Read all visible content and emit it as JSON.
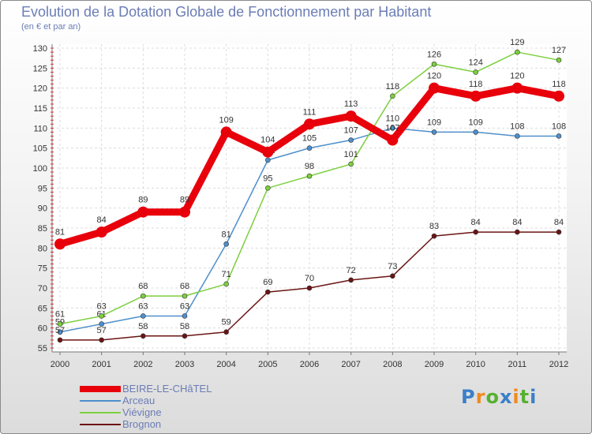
{
  "header": {
    "title": "Evolution de la Dotation Globale de Fonctionnement par Habitant",
    "subtitle": "(en € et par an)"
  },
  "brand": {
    "letters": [
      "P",
      "r",
      "o",
      "x",
      "i",
      "t",
      "i"
    ],
    "colors": [
      "#3a7fc8",
      "#f08a1c",
      "#58b030",
      "#3a7fc8",
      "#f08a1c",
      "#58b030",
      "#3a7fc8"
    ]
  },
  "chart_data": {
    "type": "line",
    "title": "Evolution de la Dotation Globale de Fonctionnement par Habitant",
    "subtitle": "(en € et par an)",
    "x": [
      "2000",
      "2001",
      "2002",
      "2003",
      "2004",
      "2005",
      "2006",
      "2007",
      "2008",
      "2009",
      "2010",
      "2011",
      "2012"
    ],
    "ylim": [
      55,
      130
    ],
    "yticks": [
      55,
      60,
      65,
      70,
      75,
      80,
      85,
      90,
      95,
      100,
      105,
      110,
      115,
      120,
      125,
      130
    ],
    "grid": true,
    "legend_position": "bottom-left",
    "series": [
      {
        "name": "BEIRE-LE-CHâTEL",
        "color": "#e8000b",
        "emphasis": true,
        "values": [
          81,
          84,
          89,
          89,
          109,
          104,
          111,
          113,
          107,
          120,
          118,
          120,
          118
        ]
      },
      {
        "name": "Arceau",
        "color": "#4f8fcb",
        "emphasis": false,
        "values": [
          59,
          61,
          63,
          63,
          81,
          102,
          105,
          107,
          110,
          109,
          109,
          108,
          108
        ]
      },
      {
        "name": "Viévigne",
        "color": "#7ccf3e",
        "emphasis": false,
        "values": [
          61,
          63,
          68,
          68,
          71,
          95,
          98,
          101,
          118,
          126,
          124,
          129,
          127
        ]
      },
      {
        "name": "Brognon",
        "color": "#6b1414",
        "emphasis": false,
        "values": [
          57,
          57,
          58,
          58,
          59,
          69,
          70,
          72,
          73,
          83,
          84,
          84,
          84
        ]
      }
    ]
  }
}
